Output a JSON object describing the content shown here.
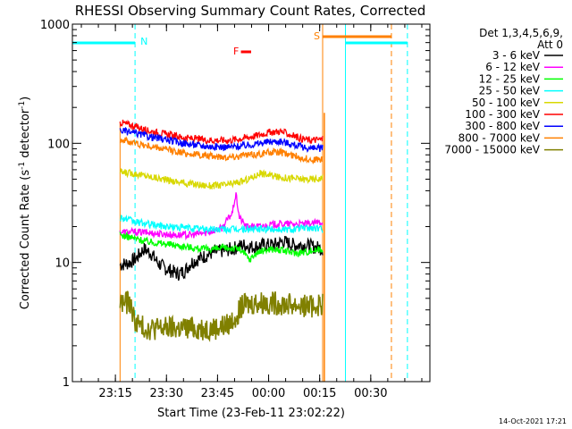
{
  "chart_data": {
    "type": "line",
    "title": "RHESSI Observing Summary Count Rates, Corrected",
    "xlabel": "Start Time (23-Feb-11 23:02:22)",
    "ylabel_main": "Corrected Count Rate (s",
    "ylabel_sup1": "-1",
    "ylabel_mid": " detector",
    "ylabel_sup2": "-1",
    "ylabel_end": ")",
    "yscale": "log",
    "ylim": [
      1,
      1000
    ],
    "xlim_minutes_after_start": [
      0,
      105
    ],
    "y_ticks": [
      {
        "label": "1",
        "value": 1
      },
      {
        "label": "10",
        "value": 10
      },
      {
        "label": "100",
        "value": 100
      },
      {
        "label": "1000",
        "value": 1000
      }
    ],
    "x_ticks": [
      {
        "label": "23:15",
        "t": 12.63
      },
      {
        "label": "23:30",
        "t": 27.63
      },
      {
        "label": "23:45",
        "t": 42.63
      },
      {
        "label": "00:00",
        "t": 57.63
      },
      {
        "label": "00:15",
        "t": 72.63
      },
      {
        "label": "00:30",
        "t": 87.63
      }
    ],
    "legend_header_line1": "Det 1,3,4,5,6,9,",
    "legend_header_line2": "Att 0",
    "legend_placement": "right",
    "footer_date": "14-Oct-2021 17:21",
    "coverage_t": [
      14,
      74
    ],
    "series": [
      {
        "name": "3 - 6 keV",
        "color": "#000000",
        "points": [
          [
            14,
            9.5
          ],
          [
            17,
            10
          ],
          [
            19,
            11
          ],
          [
            21,
            13
          ],
          [
            23,
            12
          ],
          [
            25,
            10
          ],
          [
            27,
            9
          ],
          [
            29,
            8.5
          ],
          [
            31,
            8
          ],
          [
            33,
            8.5
          ],
          [
            35,
            10
          ],
          [
            38,
            11
          ],
          [
            41,
            12
          ],
          [
            44,
            12.5
          ],
          [
            47,
            13
          ],
          [
            50,
            14
          ],
          [
            53,
            13.5
          ],
          [
            56,
            14
          ],
          [
            59,
            14
          ],
          [
            62,
            15
          ],
          [
            65,
            14
          ],
          [
            68,
            14
          ],
          [
            71,
            13.5
          ],
          [
            73.5,
            13
          ]
        ]
      },
      {
        "name": "6 - 12 keV",
        "color": "#ff00ff",
        "points": [
          [
            14,
            18
          ],
          [
            20,
            18
          ],
          [
            25,
            17.5
          ],
          [
            30,
            17
          ],
          [
            35,
            17
          ],
          [
            40,
            18
          ],
          [
            44,
            19.5
          ],
          [
            47,
            26
          ],
          [
            48,
            37
          ],
          [
            49,
            24
          ],
          [
            51,
            20
          ],
          [
            55,
            20
          ],
          [
            60,
            21
          ],
          [
            65,
            21
          ],
          [
            70,
            21
          ],
          [
            73.5,
            22
          ]
        ]
      },
      {
        "name": "12 - 25 keV",
        "color": "#00ff00",
        "points": [
          [
            14,
            17
          ],
          [
            18,
            16
          ],
          [
            22,
            15
          ],
          [
            26,
            14.5
          ],
          [
            30,
            14
          ],
          [
            34,
            13.5
          ],
          [
            38,
            13
          ],
          [
            42,
            13
          ],
          [
            46,
            13.2
          ],
          [
            49,
            13
          ],
          [
            51,
            11.5
          ],
          [
            52,
            10.5
          ],
          [
            54,
            12
          ],
          [
            58,
            13
          ],
          [
            62,
            12.5
          ],
          [
            66,
            12
          ],
          [
            70,
            12.5
          ],
          [
            73.5,
            13
          ]
        ]
      },
      {
        "name": "25 - 50 keV",
        "color": "#00ffff",
        "points": [
          [
            14,
            24
          ],
          [
            18,
            22
          ],
          [
            22,
            21
          ],
          [
            28,
            20
          ],
          [
            34,
            19.5
          ],
          [
            40,
            19
          ],
          [
            46,
            19
          ],
          [
            52,
            19
          ],
          [
            58,
            19
          ],
          [
            64,
            19
          ],
          [
            70,
            19.5
          ],
          [
            73.5,
            19
          ]
        ]
      },
      {
        "name": "50 - 100 keV",
        "color": "#d8d800",
        "points": [
          [
            14,
            57
          ],
          [
            18,
            56
          ],
          [
            22,
            53
          ],
          [
            28,
            49
          ],
          [
            34,
            46
          ],
          [
            40,
            44
          ],
          [
            46,
            45
          ],
          [
            50,
            48
          ],
          [
            53,
            52
          ],
          [
            55,
            56
          ],
          [
            57,
            55
          ],
          [
            60,
            52
          ],
          [
            64,
            51
          ],
          [
            68,
            50
          ],
          [
            71,
            50
          ],
          [
            73.5,
            51
          ]
        ]
      },
      {
        "name": "100 - 300 keV",
        "color": "#ff0000",
        "points": [
          [
            14,
            150
          ],
          [
            18,
            140
          ],
          [
            22,
            128
          ],
          [
            28,
            118
          ],
          [
            34,
            110
          ],
          [
            40,
            106
          ],
          [
            46,
            106
          ],
          [
            50,
            110
          ],
          [
            54,
            116
          ],
          [
            58,
            124
          ],
          [
            61,
            126
          ],
          [
            64,
            118
          ],
          [
            67,
            110
          ],
          [
            70,
            106
          ],
          [
            73.5,
            108
          ]
        ]
      },
      {
        "name": "300 - 800 keV",
        "color": "#0000ff",
        "points": [
          [
            14,
            128
          ],
          [
            18,
            122
          ],
          [
            22,
            115
          ],
          [
            28,
            106
          ],
          [
            34,
            99
          ],
          [
            40,
            94
          ],
          [
            46,
            93
          ],
          [
            50,
            95
          ],
          [
            54,
            99
          ],
          [
            58,
            103
          ],
          [
            61,
            104
          ],
          [
            64,
            99
          ],
          [
            67,
            94
          ],
          [
            70,
            90
          ],
          [
            73.5,
            91
          ]
        ]
      },
      {
        "name": "800 - 7000 keV",
        "color": "#ff8000",
        "points": [
          [
            14,
            108
          ],
          [
            18,
            101
          ],
          [
            22,
            95
          ],
          [
            28,
            88
          ],
          [
            34,
            82
          ],
          [
            40,
            78
          ],
          [
            46,
            77
          ],
          [
            50,
            79
          ],
          [
            54,
            81
          ],
          [
            58,
            84
          ],
          [
            61,
            84
          ],
          [
            64,
            80
          ],
          [
            67,
            76
          ],
          [
            70,
            73
          ],
          [
            73.5,
            73
          ]
        ]
      },
      {
        "name": "7000 - 15000 keV",
        "color": "#808000",
        "points": [
          [
            14,
            4.6
          ],
          [
            17,
            4.6
          ],
          [
            18,
            3.4
          ],
          [
            20,
            2.9
          ],
          [
            22,
            2.8
          ],
          [
            26,
            2.8
          ],
          [
            30,
            2.8
          ],
          [
            34,
            2.8
          ],
          [
            38,
            2.8
          ],
          [
            42,
            2.8
          ],
          [
            46,
            3
          ],
          [
            48,
            3.6
          ],
          [
            50,
            4.3
          ],
          [
            54,
            4.6
          ],
          [
            58,
            4.6
          ],
          [
            62,
            4.5
          ],
          [
            66,
            4.4
          ],
          [
            70,
            4.3
          ],
          [
            73.5,
            4.5
          ]
        ]
      }
    ],
    "annotations": [
      {
        "label": "N",
        "t": 18.4,
        "kind": "night-start",
        "color": "#00ffff"
      },
      {
        "label": "S",
        "t": 73.5,
        "kind": "saa-start",
        "color": "#ff8000"
      },
      {
        "label": "F",
        "t": 50.5,
        "kind": "flare-flag",
        "color": "#ff0000"
      }
    ],
    "night_bars": [
      {
        "t0": 0,
        "t1": 18.4,
        "color": "#00ffff"
      },
      {
        "t0": 80.2,
        "t1": 98.4,
        "color": "#00ffff"
      }
    ],
    "saa_bars": [
      {
        "t0": 73.5,
        "t1": 93.7,
        "color": "#ff8000"
      }
    ],
    "flare_bar": {
      "t0": 49.5,
      "t1": 52.5,
      "color": "#ff0000"
    },
    "markers": [
      {
        "t": 0,
        "color": "#00ffff",
        "style": "solid"
      },
      {
        "t": 18.4,
        "color": "#00ffff",
        "style": "dashed"
      },
      {
        "t": 80.2,
        "color": "#00ffff",
        "style": "solid"
      },
      {
        "t": 98.4,
        "color": "#00ffff",
        "style": "dashed"
      },
      {
        "t": 73.5,
        "color": "#ff8000",
        "style": "solid"
      },
      {
        "t": 93.7,
        "color": "#ff8000",
        "style": "dashed"
      }
    ]
  }
}
